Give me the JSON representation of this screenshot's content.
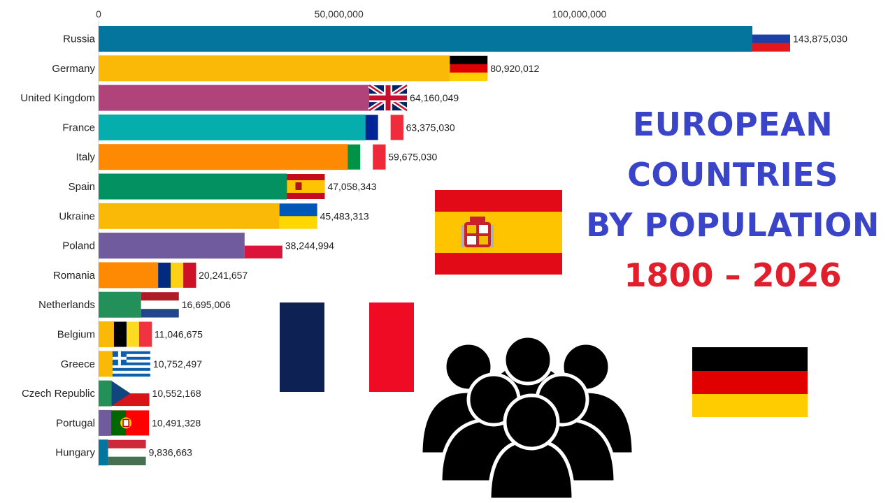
{
  "title": {
    "lines": [
      "EUROPEAN",
      "COUNTRIES",
      "BY POPULATION"
    ],
    "years": "1800 – 2026"
  },
  "chart_data": {
    "type": "bar",
    "orientation": "horizontal",
    "xlim": [
      0,
      143875030
    ],
    "x_ticks": [
      {
        "value": 0,
        "label": "0"
      },
      {
        "value": 50000000,
        "label": "50,000,000"
      },
      {
        "value": 100000000,
        "label": "100,000,000"
      }
    ],
    "grid": false,
    "categories": [
      "Russia",
      "Germany",
      "United Kingdom",
      "France",
      "Italy",
      "Spain",
      "Ukraine",
      "Poland",
      "Romania",
      "Netherlands",
      "Belgium",
      "Greece",
      "Czech Republic",
      "Portugal",
      "Hungary"
    ],
    "values": [
      143875030,
      80920012,
      64160049,
      63375030,
      59675030,
      47058343,
      45483313,
      38244994,
      20241657,
      16695006,
      11046675,
      10752497,
      10552168,
      10491328,
      9836663
    ],
    "value_labels": [
      "143,875,030",
      "80,920,012",
      "64,160,049",
      "63,375,030",
      "59,675,030",
      "47,058,343",
      "45,483,313",
      "38,244,994",
      "20,241,657",
      "16,695,006",
      "11,046,675",
      "10,752,497",
      "10,552,168",
      "10,491,328",
      "9,836,663"
    ],
    "bar_colors": [
      "#04759c",
      "#fbb907",
      "#b0447a",
      "#06adad",
      "#fe8902",
      "#039161",
      "#fbb907",
      "#705b9f",
      "#fe8902",
      "#229058",
      "#fbb907",
      "#fbb907",
      "#229058",
      "#705b9f",
      "#04759c"
    ],
    "flag_icons": [
      "russia-flag-icon",
      "germany-flag-icon",
      "united-kingdom-flag-icon",
      "france-flag-icon",
      "italy-flag-icon",
      "spain-flag-icon",
      "ukraine-flag-icon",
      "poland-flag-icon",
      "romania-flag-icon",
      "netherlands-flag-icon",
      "belgium-flag-icon",
      "greece-flag-icon",
      "czech-republic-flag-icon",
      "portugal-flag-icon",
      "hungary-flag-icon"
    ]
  },
  "decorations": {
    "icons": [
      "spain-flag-large-icon",
      "france-flag-large-icon",
      "germany-flag-large-icon",
      "people-group-icon"
    ]
  },
  "colors": {
    "title": "#3944c8",
    "years": "#e01e2c",
    "text": "#222222"
  }
}
